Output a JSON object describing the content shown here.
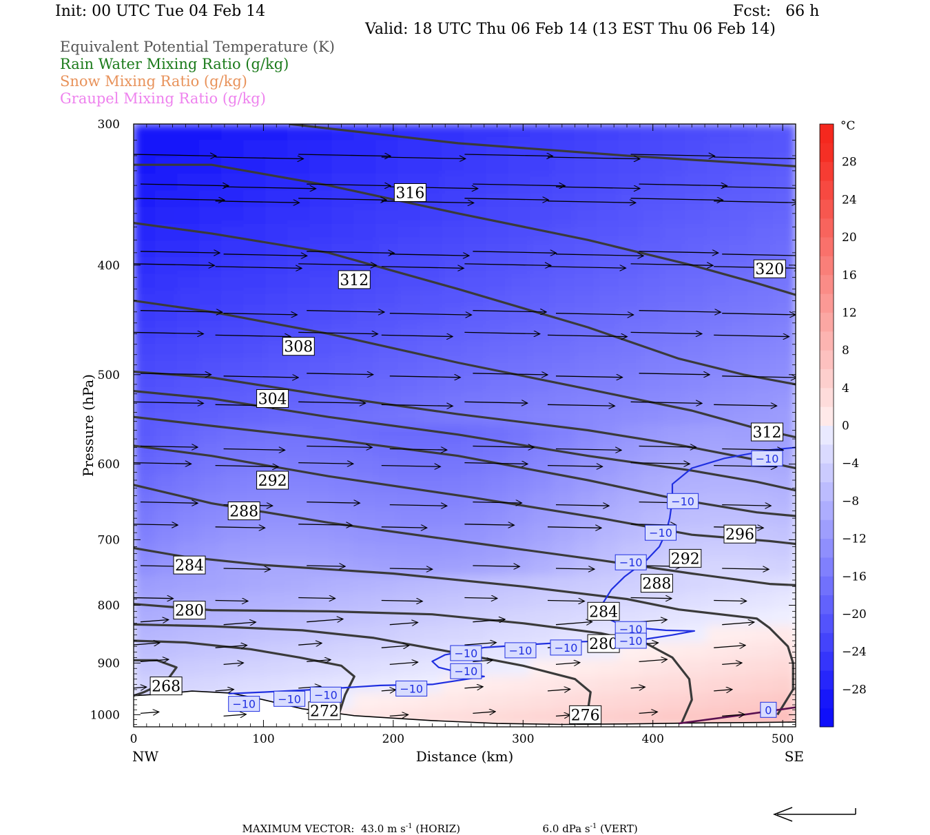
{
  "header": {
    "init": "Init: 00 UTC Tue 04 Feb 14",
    "fcst": "Fcst:   66 h",
    "valid": "Valid: 18 UTC Thu 06 Feb 14 (13 EST Thu 06 Feb 14)"
  },
  "fields": [
    {
      "label": "Equivalent Potential Temperature (K)",
      "color": "#555555"
    },
    {
      "label": "Rain Water Mixing Ratio (g/kg)",
      "color": "#1a7a1a"
    },
    {
      "label": "Snow Mixing Ratio (g/kg)",
      "color": "#e8925a"
    },
    {
      "label": "Graupel Mixing Ratio (g/kg)",
      "color": "#ee82ee"
    }
  ],
  "chart_data": {
    "type": "cross-section",
    "xlabel": "Distance (km)",
    "ylabel": "Pressure (hPa)",
    "xlim": [
      0,
      510
    ],
    "ylim": [
      1025,
      300
    ],
    "y_scale": "log",
    "x_ticks": [
      0,
      100,
      200,
      300,
      400,
      500
    ],
    "y_ticks": [
      300,
      400,
      500,
      600,
      700,
      800,
      900,
      1000
    ],
    "x_end_labels": {
      "left": "NW",
      "right": "SE"
    },
    "colorbar": {
      "unit": "°C",
      "levels": [
        -32,
        -30,
        -28,
        -26,
        -24,
        -22,
        -20,
        -18,
        -16,
        -14,
        -12,
        -10,
        -8,
        -6,
        -4,
        -2,
        0,
        2,
        4,
        6,
        8,
        10,
        12,
        14,
        16,
        18,
        20,
        22,
        24,
        26,
        28,
        30,
        32
      ],
      "tick_labels": [
        28,
        24,
        20,
        16,
        12,
        8,
        4,
        0,
        -4,
        -8,
        -12,
        -16,
        -20,
        -24,
        -28
      ]
    },
    "theta_e_contours": [
      {
        "level": 268,
        "points": [
          [
            0,
            895
          ],
          [
            18,
            895
          ],
          [
            33,
            908
          ],
          [
            25,
            935
          ],
          [
            8,
            955
          ],
          [
            0,
            962
          ]
        ]
      },
      {
        "level": 272,
        "points": [
          [
            0,
            860
          ],
          [
            40,
            863
          ],
          [
            90,
            875
          ],
          [
            128,
            890
          ],
          [
            160,
            905
          ],
          [
            170,
            925
          ],
          [
            163,
            960
          ],
          [
            158,
            1000
          ]
        ]
      },
      {
        "level": 276,
        "points": [
          [
            0,
            832
          ],
          [
            60,
            835
          ],
          [
            130,
            842
          ],
          [
            185,
            855
          ],
          [
            245,
            880
          ],
          [
            300,
            905
          ],
          [
            340,
            930
          ],
          [
            352,
            955
          ],
          [
            350,
            990
          ],
          [
            340,
            1020
          ]
        ]
      },
      {
        "level": 280,
        "points": [
          [
            0,
            798
          ],
          [
            60,
            808
          ],
          [
            150,
            810
          ],
          [
            230,
            815
          ],
          [
            300,
            830
          ],
          [
            360,
            847
          ],
          [
            395,
            865
          ],
          [
            415,
            890
          ],
          [
            428,
            930
          ],
          [
            430,
            970
          ],
          [
            422,
            1018
          ]
        ]
      },
      {
        "level": 284,
        "points": [
          [
            0,
            712
          ],
          [
            40,
            725
          ],
          [
            100,
            737
          ],
          [
            200,
            750
          ],
          [
            300,
            770
          ],
          [
            380,
            790
          ],
          [
            420,
            807
          ],
          [
            480,
            822
          ],
          [
            490,
            838
          ],
          [
            504,
            870
          ],
          [
            508,
            900
          ],
          [
            508,
            950
          ],
          [
            496,
            1000
          ]
        ]
      },
      {
        "level": 288,
        "points": [
          [
            0,
            626
          ],
          [
            60,
            650
          ],
          [
            150,
            676
          ],
          [
            260,
            704
          ],
          [
            360,
            730
          ],
          [
            430,
            750
          ],
          [
            490,
            766
          ],
          [
            510,
            768
          ]
        ]
      },
      {
        "level": 292,
        "points": [
          [
            0,
            578
          ],
          [
            60,
            590
          ],
          [
            150,
            615
          ],
          [
            260,
            642
          ],
          [
            360,
            670
          ],
          [
            430,
            693
          ],
          [
            490,
            702
          ],
          [
            510,
            706
          ]
        ]
      },
      {
        "level": 296,
        "points": [
          [
            0,
            545
          ],
          [
            60,
            555
          ],
          [
            150,
            570
          ],
          [
            250,
            590
          ],
          [
            350,
            620
          ],
          [
            420,
            645
          ],
          [
            480,
            662
          ],
          [
            510,
            667
          ]
        ]
      },
      {
        "level": 300,
        "points": [
          [
            0,
            517
          ],
          [
            60,
            525
          ],
          [
            150,
            545
          ],
          [
            250,
            565
          ],
          [
            350,
            590
          ],
          [
            430,
            608
          ],
          [
            480,
            622
          ],
          [
            510,
            633
          ]
        ]
      },
      {
        "level": 304,
        "points": [
          [
            0,
            497
          ],
          [
            60,
            503
          ],
          [
            150,
            522
          ],
          [
            250,
            542
          ],
          [
            350,
            560
          ],
          [
            420,
            577
          ],
          [
            480,
            595
          ],
          [
            510,
            605
          ]
        ]
      },
      {
        "level": 308,
        "points": [
          [
            0,
            430
          ],
          [
            60,
            440
          ],
          [
            150,
            460
          ],
          [
            250,
            488
          ],
          [
            350,
            515
          ],
          [
            430,
            538
          ],
          [
            480,
            558
          ],
          [
            510,
            568
          ]
        ]
      },
      {
        "level": 312,
        "points": [
          [
            0,
            367
          ],
          [
            60,
            375
          ],
          [
            150,
            390
          ],
          [
            250,
            420
          ],
          [
            350,
            454
          ],
          [
            420,
            484
          ],
          [
            470,
            500
          ],
          [
            510,
            510
          ]
        ]
      },
      {
        "level": 316,
        "points": [
          [
            0,
            326
          ],
          [
            60,
            326
          ],
          [
            150,
            340
          ],
          [
            250,
            360
          ],
          [
            350,
            380
          ],
          [
            430,
            400
          ],
          [
            480,
            415
          ],
          [
            510,
            425
          ]
        ]
      },
      {
        "level": 320,
        "points": [
          [
            120,
            300
          ],
          [
            250,
            312
          ],
          [
            380,
            320
          ],
          [
            510,
            327
          ]
        ]
      }
    ],
    "isotherm_minus10": [
      [
        [
          73,
          958
        ],
        [
          100,
          955
        ],
        [
          140,
          950
        ],
        [
          190,
          942
        ],
        [
          230,
          940
        ],
        [
          270,
          925
        ],
        [
          255,
          920
        ],
        [
          235,
          908
        ],
        [
          230,
          897
        ],
        [
          240,
          885
        ],
        [
          270,
          872
        ],
        [
          310,
          866
        ],
        [
          340,
          862
        ],
        [
          370,
          860
        ],
        [
          395,
          857
        ],
        [
          415,
          850
        ],
        [
          432,
          843
        ],
        [
          410,
          842
        ],
        [
          390,
          838
        ],
        [
          375,
          832
        ],
        [
          365,
          822
        ],
        [
          357,
          810
        ],
        [
          362,
          795
        ],
        [
          368,
          775
        ],
        [
          378,
          755
        ],
        [
          395,
          730
        ],
        [
          405,
          710
        ],
        [
          410,
          690
        ],
        [
          413,
          670
        ],
        [
          415,
          645
        ],
        [
          415,
          625
        ],
        [
          430,
          605
        ],
        [
          455,
          593
        ],
        [
          490,
          583
        ],
        [
          510,
          580
        ]
      ]
    ],
    "isotherm_zero": [
      [
        [
          420,
          1018
        ],
        [
          470,
          1000
        ],
        [
          510,
          985
        ]
      ]
    ],
    "contour_labels": [
      {
        "text": "316",
        "x": 213,
        "y": 345
      },
      {
        "text": "312",
        "x": 170,
        "y": 412
      },
      {
        "text": "308",
        "x": 127,
        "y": 472
      },
      {
        "text": "304",
        "x": 107,
        "y": 525
      },
      {
        "text": "292",
        "x": 107,
        "y": 620
      },
      {
        "text": "288",
        "x": 85,
        "y": 660
      },
      {
        "text": "284",
        "x": 43,
        "y": 737
      },
      {
        "text": "280",
        "x": 43,
        "y": 808
      },
      {
        "text": "268",
        "x": 25,
        "y": 943
      },
      {
        "text": "272",
        "x": 147,
        "y": 992
      },
      {
        "text": "276",
        "x": 348,
        "y": 1000
      },
      {
        "text": "280",
        "x": 362,
        "y": 865
      },
      {
        "text": "284",
        "x": 362,
        "y": 810
      },
      {
        "text": "288",
        "x": 403,
        "y": 765
      },
      {
        "text": "292",
        "x": 425,
        "y": 727
      },
      {
        "text": "296",
        "x": 467,
        "y": 692
      },
      {
        "text": "312",
        "x": 488,
        "y": 562
      },
      {
        "text": "320",
        "x": 490,
        "y": 403
      }
    ],
    "isotherm_labels": [
      {
        "text": "-10",
        "x": 488,
        "y": 593
      },
      {
        "text": "-10",
        "x": 423,
        "y": 647
      },
      {
        "text": "-10",
        "x": 406,
        "y": 690
      },
      {
        "text": "-10",
        "x": 383,
        "y": 733
      },
      {
        "text": "-10",
        "x": 383,
        "y": 840
      },
      {
        "text": "-10",
        "x": 383,
        "y": 860
      },
      {
        "text": "-10",
        "x": 333,
        "y": 872
      },
      {
        "text": "-10",
        "x": 298,
        "y": 877
      },
      {
        "text": "-10",
        "x": 256,
        "y": 882
      },
      {
        "text": "-10",
        "x": 256,
        "y": 915
      },
      {
        "text": "-10",
        "x": 214,
        "y": 948
      },
      {
        "text": "-10",
        "x": 148,
        "y": 960
      },
      {
        "text": "-10",
        "x": 120,
        "y": 968
      },
      {
        "text": "-10",
        "x": 85,
        "y": 978
      },
      {
        "text": "0",
        "x": 489,
        "y": 990
      }
    ],
    "wind_vectors": {
      "x": [
        0,
        64,
        128,
        192,
        256,
        320,
        384,
        448,
        510
      ],
      "p": [
        320,
        340,
        350,
        390,
        400,
        440,
        460,
        500,
        530,
        580,
        600,
        650,
        680,
        740,
        790,
        830,
        870,
        900,
        950,
        1000
      ],
      "max_vector": {
        "horizontal": "43.0",
        "vertical": "6.0"
      }
    }
  },
  "footer": {
    "max_label": "MAXIMUM VECTOR:",
    "horiz_value": "43.0",
    "horiz_unit": "m s",
    "horiz_tag": "(HORIZ)",
    "vert_value": "6.0",
    "vert_unit": "dPa s",
    "vert_tag": "(VERT)",
    "exp": "-1"
  }
}
